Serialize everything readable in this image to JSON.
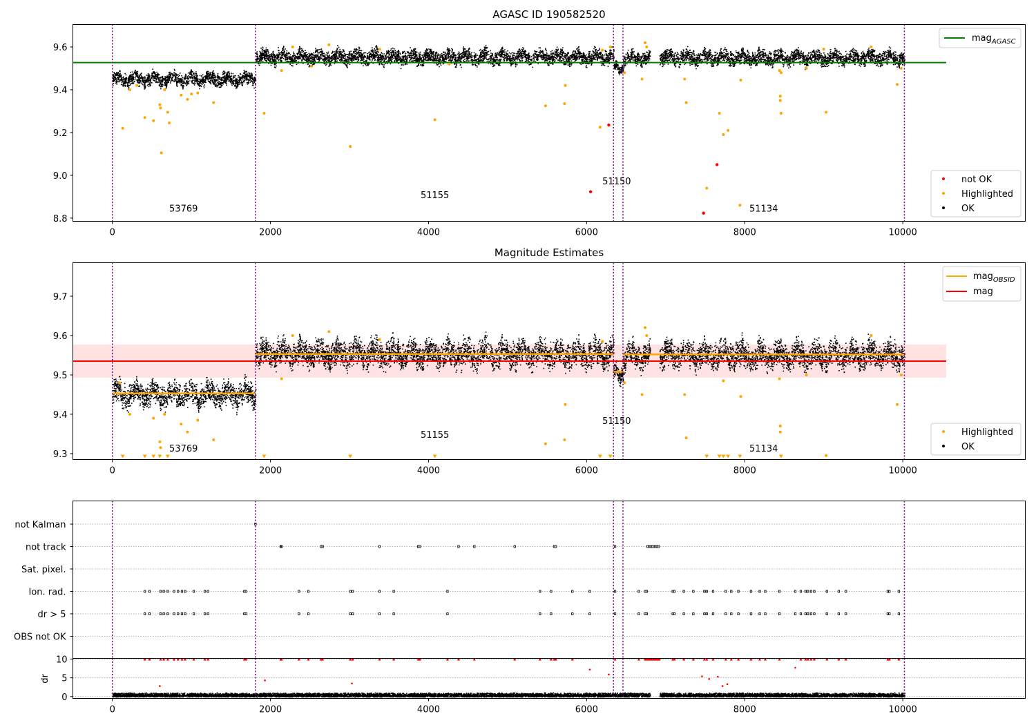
{
  "figure": {
    "title": "AGASC ID 190582520"
  },
  "chart_data": [
    {
      "type": "scatter",
      "title": "AGASC ID 190582520",
      "xlabel": "",
      "ylabel": "",
      "xlim": [
        -500,
        11550
      ],
      "ylim": [
        8.785,
        9.705
      ],
      "xticks": [
        0,
        2000,
        4000,
        6000,
        8000,
        10000
      ],
      "yticks": [
        8.8,
        9.0,
        9.2,
        9.4,
        9.6
      ],
      "ytick_labels": [
        "8.8",
        "9.0",
        "9.2",
        "9.4",
        "9.6"
      ],
      "grid": false,
      "legend_upper": {
        "position": "top-right",
        "entries": [
          {
            "name": "mag",
            "sub": "AGASC",
            "color": "#008000",
            "kind": "line"
          }
        ]
      },
      "legend_lower": {
        "position": "bottom-right",
        "entries": [
          {
            "name": "not OK",
            "color": "#ff0000",
            "kind": "dot"
          },
          {
            "name": "Highlighted",
            "color": "#ffa500",
            "kind": "dot"
          },
          {
            "name": "OK",
            "color": "#000000",
            "kind": "dot"
          }
        ]
      },
      "agasc_mag": 9.527,
      "agasc_line_xrange": [
        -500,
        10550
      ],
      "obsid_boundaries": [
        0,
        1810,
        6340,
        6460,
        10020
      ],
      "obsid_labels": [
        {
          "text": "53769",
          "x": 900,
          "y": 8.83
        },
        {
          "text": "51155",
          "x": 4080,
          "y": 8.893
        },
        {
          "text": "51150",
          "x": 6380,
          "y": 8.957
        },
        {
          "text": "51134",
          "x": 8240,
          "y": 8.83
        }
      ],
      "segments": [
        {
          "x": [
            0,
            1810
          ],
          "mean": 9.452,
          "spread": 0.045
        },
        {
          "x": [
            1810,
            6340
          ],
          "mean": 9.555,
          "spread": 0.05
        },
        {
          "x": [
            6340,
            6460
          ],
          "mean": 9.505,
          "spread": 0.03
        },
        {
          "x": [
            6460,
            6800
          ],
          "mean": 9.55,
          "spread": 0.045
        },
        {
          "x": [
            6920,
            10020
          ],
          "mean": 9.552,
          "spread": 0.05
        }
      ],
      "series": [
        {
          "name": "not OK",
          "color": "#ff0000",
          "points": [
            [
              6050,
              8.923
            ],
            [
              6280,
              9.235
            ],
            [
              7480,
              8.823
            ],
            [
              7650,
              9.05
            ]
          ]
        },
        {
          "name": "Highlighted",
          "color": "#ffa500",
          "points": [
            [
              130,
              9.22
            ],
            [
              220,
              9.4
            ],
            [
              410,
              9.27
            ],
            [
              520,
              9.255
            ],
            [
              600,
              9.33
            ],
            [
              610,
              9.315
            ],
            [
              620,
              9.105
            ],
            [
              700,
              9.295
            ],
            [
              720,
              9.245
            ],
            [
              870,
              9.375
            ],
            [
              950,
              9.355
            ],
            [
              1000,
              9.38
            ],
            [
              1080,
              9.385
            ],
            [
              1280,
              9.34
            ],
            [
              660,
              9.4
            ],
            [
              310,
              9.42
            ],
            [
              1920,
              9.29
            ],
            [
              2140,
              9.49
            ],
            [
              2280,
              9.6
            ],
            [
              2520,
              9.51
            ],
            [
              2740,
              9.61
            ],
            [
              3010,
              9.135
            ],
            [
              3380,
              9.59
            ],
            [
              4080,
              9.26
            ],
            [
              4260,
              9.52
            ],
            [
              5480,
              9.325
            ],
            [
              5720,
              9.335
            ],
            [
              5730,
              9.42
            ],
            [
              6170,
              9.225
            ],
            [
              6200,
              9.585
            ],
            [
              6300,
              9.6
            ],
            [
              6480,
              9.48
            ],
            [
              6700,
              9.45
            ],
            [
              6740,
              9.62
            ],
            [
              6760,
              9.6
            ],
            [
              7240,
              9.45
            ],
            [
              7260,
              9.34
            ],
            [
              7520,
              8.94
            ],
            [
              7680,
              9.29
            ],
            [
              7730,
              9.19
            ],
            [
              7790,
              9.21
            ],
            [
              7940,
              8.86
            ],
            [
              7950,
              9.445
            ],
            [
              8450,
              9.37
            ],
            [
              8450,
              9.35
            ],
            [
              8460,
              9.29
            ],
            [
              8440,
              9.49
            ],
            [
              8460,
              9.48
            ],
            [
              8780,
              9.5
            ],
            [
              9030,
              9.295
            ],
            [
              9000,
              9.59
            ],
            [
              9600,
              9.6
            ],
            [
              9930,
              9.425
            ],
            [
              9980,
              9.5
            ]
          ]
        },
        {
          "name": "OK",
          "color": "#000000",
          "points": "generated per segment (about 15000 black points around the segment means)"
        }
      ]
    },
    {
      "type": "scatter",
      "title": "Magnitude Estimates",
      "xlabel": "",
      "ylabel": "",
      "xlim": [
        -500,
        11550
      ],
      "ylim": [
        9.285,
        9.785
      ],
      "xticks": [
        0,
        2000,
        4000,
        6000,
        8000,
        10000
      ],
      "yticks": [
        9.3,
        9.4,
        9.5,
        9.6,
        9.7
      ],
      "ytick_labels": [
        "9.3",
        "9.4",
        "9.5",
        "9.6",
        "9.7"
      ],
      "grid": false,
      "legend_upper": {
        "position": "top-right",
        "entries": [
          {
            "name": "mag",
            "sub": "OBSID",
            "color": "#ffa500",
            "kind": "line"
          },
          {
            "name": "mag",
            "sub": "",
            "color": "#ff0000",
            "kind": "line"
          }
        ]
      },
      "legend_lower": {
        "position": "bottom-right",
        "entries": [
          {
            "name": "Highlighted",
            "color": "#ffa500",
            "kind": "dot"
          },
          {
            "name": "OK",
            "color": "#000000",
            "kind": "dot"
          }
        ]
      },
      "mag": 9.535,
      "mag_band": [
        9.493,
        9.577
      ],
      "mag_line_xrange": [
        -500,
        10550
      ],
      "mag_obsid": [
        {
          "x": [
            0,
            1810
          ],
          "value": 9.453
        },
        {
          "x": [
            1810,
            6340
          ],
          "value": 9.553
        },
        {
          "x": [
            6340,
            6460
          ],
          "value": 9.508
        },
        {
          "x": [
            6460,
            10020
          ],
          "value": 9.552
        }
      ],
      "obsid_boundaries": [
        0,
        1810,
        6340,
        6460,
        10020
      ],
      "obsid_labels": [
        {
          "text": "53769",
          "x": 900,
          "y": 9.305
        },
        {
          "text": "51155",
          "x": 4080,
          "y": 9.34
        },
        {
          "text": "51150",
          "x": 6380,
          "y": 9.375
        },
        {
          "text": "51134",
          "x": 8240,
          "y": 9.305
        }
      ],
      "series": [
        {
          "name": "Highlighted",
          "color": "#ffa500",
          "points": [
            [
              90,
              9.48
            ],
            [
              220,
              9.4
            ],
            [
              520,
              9.39
            ],
            [
              600,
              9.33
            ],
            [
              610,
              9.315
            ],
            [
              660,
              9.4
            ],
            [
              870,
              9.375
            ],
            [
              950,
              9.355
            ],
            [
              1080,
              9.385
            ],
            [
              1280,
              9.335
            ],
            [
              2140,
              9.49
            ],
            [
              2280,
              9.6
            ],
            [
              2740,
              9.61
            ],
            [
              3380,
              9.59
            ],
            [
              5480,
              9.325
            ],
            [
              5720,
              9.335
            ],
            [
              5730,
              9.425
            ],
            [
              6200,
              9.585
            ],
            [
              6480,
              9.48
            ],
            [
              6700,
              9.45
            ],
            [
              6740,
              9.62
            ],
            [
              6760,
              9.6
            ],
            [
              7240,
              9.45
            ],
            [
              7260,
              9.34
            ],
            [
              7730,
              9.485
            ],
            [
              7950,
              9.445
            ],
            [
              8450,
              9.37
            ],
            [
              8450,
              9.355
            ],
            [
              8440,
              9.49
            ],
            [
              8780,
              9.5
            ],
            [
              9030,
              9.295
            ],
            [
              9600,
              9.6
            ],
            [
              9930,
              9.425
            ],
            [
              9980,
              9.5
            ]
          ]
        },
        {
          "name": "Highlighted (below axis)",
          "color": "#ffa500",
          "marker": "triangle-down",
          "x": [
            130,
            410,
            520,
            600,
            700,
            1920,
            3010,
            4080,
            6170,
            6300,
            7520,
            7680,
            7730,
            7790,
            7940,
            8460
          ]
        },
        {
          "name": "OK",
          "color": "#000000",
          "points": "generated per segment (about 15000 black points around the segment means)"
        }
      ]
    },
    {
      "type": "scatter",
      "title": "",
      "xlabel": "",
      "ylabel": "",
      "xlim": [
        -500,
        11550
      ],
      "categories": [
        "not Kalman",
        "not track",
        "Sat. pixel.",
        "Ion. rad.",
        "dr > 5",
        "OBS not OK"
      ],
      "flag_x": {
        "not Kalman": [
          1810
        ],
        "not track": [
          2130,
          2140,
          2640,
          2660,
          3380,
          3870,
          3890,
          4380,
          4580,
          5090,
          5590,
          5610,
          6360,
          6770,
          6790,
          6810,
          6830,
          6850,
          6870,
          6890,
          6910
        ],
        "Sat. pixel.": [],
        "Ion. rad.": [
          410,
          470,
          610,
          650,
          700,
          780,
          830,
          880,
          920,
          1030,
          1170,
          1210,
          1670,
          1690,
          2360,
          2480,
          3010,
          3040,
          3380,
          3560,
          4240,
          5410,
          5550,
          5820,
          6040,
          6360,
          6660,
          6740,
          6760,
          7090,
          7110,
          7230,
          7350,
          7490,
          7520,
          7600,
          7760,
          7830,
          7920,
          8080,
          8190,
          8260,
          8440,
          8640,
          8710,
          8770,
          8800,
          8840,
          8880,
          9040,
          9190,
          9280,
          9810,
          9830,
          9950
        ],
        "dr > 5": [
          410,
          470,
          610,
          650,
          700,
          780,
          830,
          880,
          920,
          1030,
          1170,
          1210,
          1670,
          1690,
          2360,
          2480,
          3010,
          3040,
          3380,
          3560,
          4240,
          5410,
          5550,
          5820,
          6040,
          6360,
          6660,
          6740,
          6760,
          7090,
          7110,
          7230,
          7350,
          7490,
          7520,
          7600,
          7760,
          7830,
          7920,
          8080,
          8190,
          8260,
          8440,
          8640,
          8710,
          8770,
          8800,
          8840,
          8880,
          9040,
          9190,
          9280,
          9810,
          9830,
          9950
        ],
        "OBS not OK": []
      }
    },
    {
      "type": "scatter",
      "title": "",
      "xlabel": "",
      "ylabel": "dr",
      "xlim": [
        -500,
        11550
      ],
      "ylim": [
        -0.5,
        10.2
      ],
      "xticks": [
        0,
        2000,
        4000,
        6000,
        8000,
        10000
      ],
      "xtick_labels": [
        "0",
        "2000",
        "4000",
        "6000",
        "8000",
        "10000"
      ],
      "yticks": [
        0,
        5,
        10
      ],
      "ytick_labels": [
        "0",
        "5",
        "10"
      ],
      "clipped_value": 10,
      "grid": true,
      "red_points": [
        [
          600,
          2.8
        ],
        [
          1930,
          4.3
        ],
        [
          3030,
          3.5
        ],
        [
          6040,
          7.2
        ],
        [
          6280,
          5.9
        ],
        [
          7460,
          5.4
        ],
        [
          7550,
          4.7
        ],
        [
          7660,
          5.3
        ],
        [
          7720,
          2.8
        ],
        [
          7780,
          3.3
        ],
        [
          8640,
          7.7
        ]
      ],
      "red_clipped_x": [
        410,
        470,
        610,
        650,
        700,
        780,
        830,
        880,
        920,
        1030,
        1170,
        1210,
        1670,
        1690,
        2130,
        2140,
        2360,
        2480,
        2640,
        2660,
        3010,
        3040,
        3380,
        3560,
        3870,
        3890,
        4240,
        4380,
        4580,
        5090,
        5410,
        5550,
        5590,
        5610,
        5820,
        6360,
        6660,
        6740,
        6760,
        6780,
        6800,
        6820,
        6840,
        6860,
        6880,
        6900,
        6920,
        7090,
        7110,
        7230,
        7350,
        7490,
        7520,
        7600,
        7760,
        7830,
        7920,
        8080,
        8190,
        8260,
        8440,
        8710,
        8770,
        8800,
        8840,
        8880,
        9040,
        9190,
        9280,
        9810,
        9830,
        9950
      ]
    }
  ]
}
